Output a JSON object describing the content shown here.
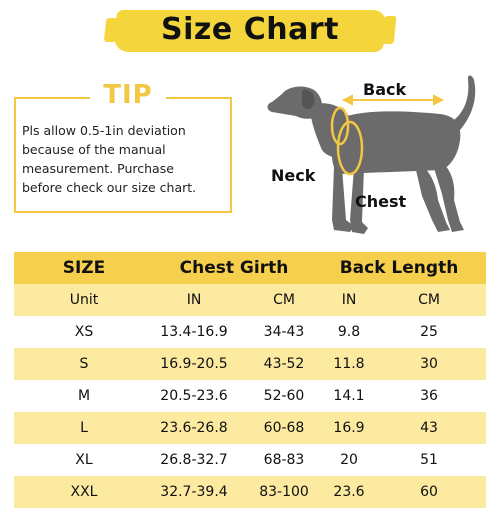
{
  "title": "Size Chart",
  "tip": {
    "label": "TIP",
    "lines": [
      "Pls allow 0.5-1in deviation",
      "because of the manual",
      "measurement. Purchase",
      "before check our size chart."
    ]
  },
  "diagram": {
    "back_label": "Back",
    "neck_label": "Neck",
    "chest_label": "Chest"
  },
  "table": {
    "header": {
      "size": "SIZE",
      "chest_girth": "Chest Girth",
      "back_length": "Back Length"
    },
    "units": {
      "label": "Unit",
      "chest_in": "IN",
      "chest_cm": "CM",
      "back_in": "IN",
      "back_cm": "CM"
    },
    "rows": [
      {
        "size": "XS",
        "chest_in": "13.4-16.9",
        "chest_cm": "34-43",
        "back_in": "9.8",
        "back_cm": "25"
      },
      {
        "size": "S",
        "chest_in": "16.9-20.5",
        "chest_cm": "43-52",
        "back_in": "11.8",
        "back_cm": "30"
      },
      {
        "size": "M",
        "chest_in": "20.5-23.6",
        "chest_cm": "52-60",
        "back_in": "14.1",
        "back_cm": "36"
      },
      {
        "size": "L",
        "chest_in": "23.6-26.8",
        "chest_cm": "60-68",
        "back_in": "16.9",
        "back_cm": "43"
      },
      {
        "size": "XL",
        "chest_in": "26.8-32.7",
        "chest_cm": "68-83",
        "back_in": "20",
        "back_cm": "51"
      },
      {
        "size": "XXL",
        "chest_in": "32.7-39.4",
        "chest_cm": "83-100",
        "back_in": "23.6",
        "back_cm": "60"
      }
    ]
  },
  "colors": {
    "accent": "#f2c744",
    "header_row": "#f6d04d",
    "stripe_row": "#fbeaa0",
    "dog": "#6b6b6b",
    "measure_line": "#f2c744"
  }
}
